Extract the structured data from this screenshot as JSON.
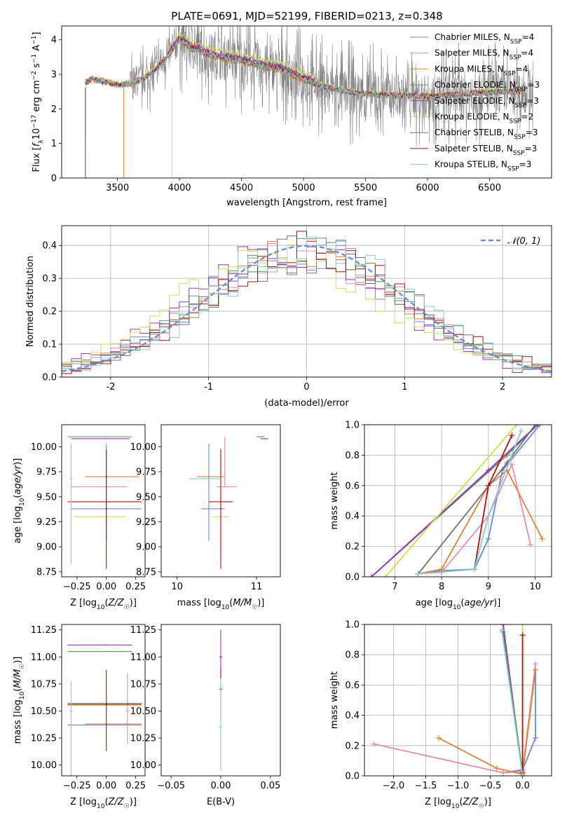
{
  "figure_title": "PLATE=0691, MJD=52199, FIBERID=0213, z=0.348",
  "colors": {
    "c1": "#6688dd",
    "c2": "#e888b8",
    "c3": "#e08030",
    "c4": "#559955",
    "c5": "#9933bb",
    "c6": "#ccdd55",
    "c7": "#707070",
    "c8": "#aa1111",
    "c9": "#88cccc",
    "data": "#808080",
    "gauss": "#6a8fd4"
  },
  "chart_data": [
    {
      "id": "spectrum",
      "type": "line",
      "title": "PLATE=0691, MJD=52199, FIBERID=0213, z=0.348",
      "xlabel": "wavelength [Angstrom, rest frame]",
      "ylabel": "Flux [f_λ 10^-17 erg cm^-2 s^-1 A^-1]",
      "xlim": [
        3050,
        7000
      ],
      "ylim": [
        0,
        4.4
      ],
      "xticks": [
        3500,
        4000,
        4500,
        5000,
        5500,
        6000,
        6500
      ],
      "yticks": [
        0,
        1,
        2,
        3,
        4
      ],
      "legend_position": "top-right",
      "legend": [
        {
          "label": "Chabrier MILES, N",
          "sub": "SSP",
          "suffix": "=4",
          "color": "#6688dd"
        },
        {
          "label": "Salpeter MILES, N",
          "sub": "SSP",
          "suffix": "=4",
          "color": "#e888b8"
        },
        {
          "label": "Kroupa MILES, N",
          "sub": "SSP",
          "suffix": "=4",
          "color": "#e08030"
        },
        {
          "label": "Chabrier ELODIE, N",
          "sub": "SSP",
          "suffix": "=3",
          "color": "#559955"
        },
        {
          "label": "Salpeter ELODIE, N",
          "sub": "SSP",
          "suffix": "=3",
          "color": "#9933bb"
        },
        {
          "label": "Kroupa ELODIE, N",
          "sub": "SSP",
          "suffix": "=2",
          "color": "#ccdd55"
        },
        {
          "label": "Chabrier STELIB, N",
          "sub": "SSP",
          "suffix": "=3",
          "color": "#707070"
        },
        {
          "label": "Salpeter STELIB, N",
          "sub": "SSP",
          "suffix": "=3",
          "color": "#aa1111"
        },
        {
          "label": "Kroupa STELIB, N",
          "sub": "SSP",
          "suffix": "=3",
          "color": "#88cccc"
        }
      ],
      "model_continuum": {
        "x": [
          3240,
          3300,
          3400,
          3500,
          3600,
          3700,
          3800,
          3900,
          4000,
          4100,
          4200,
          4300,
          4400,
          4500,
          4600,
          4700,
          4800,
          4900,
          5000,
          5200,
          5400,
          5600,
          5800,
          6000,
          6200,
          6400,
          6600,
          6800
        ],
        "y": [
          2.75,
          2.85,
          2.78,
          2.68,
          2.72,
          2.85,
          3.1,
          3.5,
          4.0,
          3.75,
          3.6,
          3.5,
          3.45,
          3.38,
          3.3,
          3.2,
          3.15,
          3.0,
          2.85,
          2.6,
          2.45,
          2.4,
          2.38,
          2.35,
          2.4,
          2.45,
          2.5,
          2.52
        ]
      }
    },
    {
      "id": "residuals",
      "type": "step",
      "xlabel": "(data-model)/error",
      "ylabel": "Normed distribution",
      "xlim": [
        -2.5,
        2.5
      ],
      "ylim": [
        0,
        0.46
      ],
      "xticks": [
        -2,
        -1,
        0,
        1,
        2
      ],
      "yticks": [
        0.0,
        0.1,
        0.2,
        0.3,
        0.4
      ],
      "grid": true,
      "legend_position": "top-right",
      "legend": [
        {
          "label": "𝒩(0, 1)",
          "style": "dashed",
          "color": "#6a8fd4"
        }
      ]
    },
    {
      "id": "age_vs_Z",
      "type": "errorbar",
      "xlabel": "Z [log10(Z/Z☉)]",
      "ylabel": "age  [log10(age/yr)]",
      "xlim": [
        -0.38,
        0.33
      ],
      "ylim": [
        8.7,
        10.22
      ],
      "xticks": [
        -0.25,
        0.0,
        0.25
      ],
      "xticklabels": [
        "−0.25",
        "0.00",
        "0.25"
      ],
      "yticks": [
        8.75,
        9.0,
        9.25,
        9.5,
        9.75,
        10.0
      ],
      "points": [
        {
          "color": "#6688dd",
          "x": 0.0,
          "y": 9.38,
          "xerr": [
            0.3,
            0.3
          ],
          "yerr": [
            0.32,
            0.65
          ]
        },
        {
          "color": "#e888b8",
          "x": 0.0,
          "y": 9.6,
          "xerr": [
            0.3,
            0.18
          ],
          "yerr": [
            0.0,
            0.0
          ]
        },
        {
          "color": "#e08030",
          "x": 0.0,
          "y": 9.7,
          "xerr": [
            0.18,
            0.28
          ],
          "yerr": [
            0.0,
            0.0
          ]
        },
        {
          "color": "#559955",
          "x": 0.0,
          "y": 10.1,
          "xerr": [
            0.33,
            0.22
          ],
          "yerr": [
            0.0,
            0.0
          ]
        },
        {
          "color": "#9933bb",
          "x": 0.0,
          "y": 10.08,
          "xerr": [
            0.3,
            0.2
          ],
          "yerr": [
            0.0,
            0.0
          ]
        },
        {
          "color": "#ccdd55",
          "x": 0.0,
          "y": 9.3,
          "xerr": [
            0.28,
            0.17
          ],
          "yerr": [
            0.0,
            0.0
          ]
        },
        {
          "color": "#707070",
          "x": 0.0,
          "y": 9.38,
          "xerr": [
            0.0,
            0.0
          ],
          "yerr": [
            0.0,
            0.0
          ]
        },
        {
          "color": "#aa1111",
          "x": 0.0,
          "y": 9.45,
          "xerr": [
            0.33,
            0.3
          ],
          "yerr": [
            0.67,
            0.52
          ]
        },
        {
          "color": "#88cccc",
          "x": -0.3,
          "y": 9.68,
          "xerr": [
            0.0,
            0.0
          ],
          "yerr": [
            0.85,
            0.35
          ]
        }
      ]
    },
    {
      "id": "age_vs_mass",
      "type": "errorbar",
      "xlabel": "mass [log10(M/M☉)]",
      "xlim": [
        9.8,
        11.3
      ],
      "ylim": [
        8.7,
        10.22
      ],
      "xticks": [
        10,
        11
      ],
      "yticks": [
        8.75,
        9.0,
        9.25,
        9.5,
        9.75,
        10.0
      ],
      "points": [
        {
          "color": "#6688dd",
          "x": 10.4,
          "y": 9.38,
          "xerr": [
            0.1,
            0.2
          ],
          "yerr": [
            0.32,
            0.65
          ]
        },
        {
          "color": "#e888b8",
          "x": 10.6,
          "y": 9.6,
          "xerr": [
            0.1,
            0.15
          ],
          "yerr": [
            0.0,
            0.5
          ]
        },
        {
          "color": "#e08030",
          "x": 10.4,
          "y": 9.7,
          "xerr": [
            0.15,
            0.2
          ],
          "yerr": [
            0.0,
            0.0
          ]
        },
        {
          "color": "#559955",
          "x": 11.05,
          "y": 10.1,
          "xerr": [
            0.05,
            0.05
          ],
          "yerr": [
            0.0,
            0.0
          ]
        },
        {
          "color": "#9933bb",
          "x": 11.1,
          "y": 10.08,
          "xerr": [
            0.05,
            0.05
          ],
          "yerr": [
            0.0,
            0.0
          ]
        },
        {
          "color": "#ccdd55",
          "x": 10.55,
          "y": 9.3,
          "xerr": [
            0.1,
            0.1
          ],
          "yerr": [
            0.0,
            0.0
          ]
        },
        {
          "color": "#707070",
          "x": 10.55,
          "y": 9.38,
          "xerr": [
            0.0,
            0.0
          ],
          "yerr": [
            0.5,
            0.6
          ]
        },
        {
          "color": "#aa1111",
          "x": 10.55,
          "y": 9.45,
          "xerr": [
            0.15,
            0.15
          ],
          "yerr": [
            0.67,
            0.52
          ]
        },
        {
          "color": "#88cccc",
          "x": 10.35,
          "y": 9.68,
          "xerr": [
            0.2,
            0.2
          ],
          "yerr": [
            0.0,
            0.0
          ]
        }
      ]
    },
    {
      "id": "weight_vs_age",
      "type": "line",
      "xlabel": "age  [log10(age/yr)]",
      "ylabel": "mass weight",
      "xlim": [
        6.35,
        10.35
      ],
      "ylim": [
        0,
        1.0
      ],
      "xticks": [
        7,
        8,
        9,
        10
      ],
      "yticks": [
        0.0,
        0.2,
        0.4,
        0.6,
        0.8,
        1.0
      ],
      "grid": true,
      "series": [
        {
          "color": "#6688dd",
          "x": [
            7.5,
            8.0,
            8.7,
            9.0,
            9.3,
            10.1
          ],
          "y": [
            0.02,
            0.04,
            0.05,
            0.25,
            0.7,
            1.0
          ]
        },
        {
          "color": "#e888b8",
          "x": [
            7.5,
            8.0,
            9.0,
            9.5,
            9.9
          ],
          "y": [
            0.02,
            0.03,
            0.4,
            0.74,
            0.21
          ]
        },
        {
          "color": "#e08030",
          "x": [
            7.5,
            8.0,
            9.0,
            9.4,
            10.15
          ],
          "y": [
            0.02,
            0.05,
            0.6,
            0.7,
            0.25
          ]
        },
        {
          "color": "#559955",
          "x": [
            6.5,
            9.4,
            10.05
          ],
          "y": [
            0.0,
            0.8,
            1.0
          ]
        },
        {
          "color": "#9933bb",
          "x": [
            6.5,
            9.0,
            10.05
          ],
          "y": [
            0.0,
            0.7,
            1.0
          ]
        },
        {
          "color": "#ccdd55",
          "x": [
            6.8,
            9.6
          ],
          "y": [
            0.0,
            1.0
          ]
        },
        {
          "color": "#707070",
          "x": [
            7.5,
            9.4,
            10.0
          ],
          "y": [
            0.02,
            0.75,
            1.0
          ]
        },
        {
          "color": "#aa1111",
          "x": [
            7.5,
            8.7,
            9.0,
            9.5
          ],
          "y": [
            0.02,
            0.05,
            0.6,
            0.93
          ]
        },
        {
          "color": "#88cccc",
          "x": [
            7.5,
            8.7,
            9.0,
            9.7
          ],
          "y": [
            0.02,
            0.05,
            0.4,
            0.96
          ]
        }
      ]
    },
    {
      "id": "mass_vs_Z",
      "type": "errorbar",
      "xlabel": "Z [log10(Z/Z☉)]",
      "ylabel": "mass [log10(M/M☉)]",
      "xlim": [
        -0.38,
        0.33
      ],
      "ylim": [
        9.9,
        11.3
      ],
      "xticks": [
        -0.25,
        0.0,
        0.25
      ],
      "xticklabels": [
        "−0.25",
        "0.00",
        "0.25"
      ],
      "yticks": [
        10.0,
        10.25,
        10.5,
        10.75,
        11.0,
        11.25
      ],
      "points": [
        {
          "color": "#6688dd",
          "x": 0.0,
          "y": 10.37,
          "xerr": [
            0.33,
            0.3
          ],
          "yerr": [
            0.0,
            0.0
          ]
        },
        {
          "color": "#e888b8",
          "x": 0.18,
          "y": 10.5,
          "xerr": [
            0.0,
            0.0
          ],
          "yerr": [
            0.3,
            0.35
          ]
        },
        {
          "color": "#e08030",
          "x": 0.0,
          "y": 10.38,
          "xerr": [
            0.18,
            0.3
          ],
          "yerr": [
            0.0,
            0.0
          ]
        },
        {
          "color": "#559955",
          "x": 0.0,
          "y": 11.05,
          "xerr": [
            0.33,
            0.22
          ],
          "yerr": [
            0.0,
            0.0
          ]
        },
        {
          "color": "#9933bb",
          "x": 0.0,
          "y": 11.11,
          "xerr": [
            0.33,
            0.22
          ],
          "yerr": [
            0.0,
            0.0
          ]
        },
        {
          "color": "#ccdd55",
          "x": 0.0,
          "y": 10.55,
          "xerr": [
            0.33,
            0.3
          ],
          "yerr": [
            0.0,
            0.0
          ]
        },
        {
          "color": "#707070",
          "x": 0.0,
          "y": 10.57,
          "xerr": [
            0.33,
            0.3
          ],
          "yerr": [
            0.0,
            0.0
          ]
        },
        {
          "color": "#aa1111",
          "x": 0.0,
          "y": 10.56,
          "xerr": [
            0.33,
            0.3
          ],
          "yerr": [
            0.43,
            0.32
          ]
        },
        {
          "color": "#88cccc",
          "x": -0.3,
          "y": 10.5,
          "xerr": [
            0.0,
            0.0
          ],
          "yerr": [
            0.6,
            0.28
          ]
        }
      ]
    },
    {
      "id": "mass_vs_ebv",
      "type": "errorbar",
      "xlabel": "E(B-V)",
      "xlim": [
        -0.06,
        0.06
      ],
      "ylim": [
        9.9,
        11.3
      ],
      "xticks": [
        -0.05,
        0.0,
        0.05
      ],
      "xticklabels": [
        "−0.05",
        "0.00",
        "0.05"
      ],
      "yticks": [
        10.0,
        10.25,
        10.5,
        10.75,
        11.0,
        11.25
      ],
      "points": [
        {
          "color": "#9933bb",
          "x": 0.0,
          "y": 11.0,
          "xerr": [
            0.0,
            0.0
          ],
          "yerr": [
            0.15,
            0.25
          ]
        },
        {
          "color": "#aa1111",
          "x": 0.0,
          "y": 10.7,
          "xerr": [
            0.0,
            0.0
          ],
          "yerr": [
            0.3,
            0.2
          ]
        },
        {
          "color": "#88cccc",
          "x": 0.0,
          "y": 10.35,
          "xerr": [
            0.0,
            0.0
          ],
          "yerr": [
            0.4,
            0.45
          ]
        }
      ]
    },
    {
      "id": "weight_vs_Z",
      "type": "line",
      "xlabel": "Z [log10(Z/Z☉)]",
      "ylabel": "mass weight",
      "xlim": [
        -2.45,
        0.45
      ],
      "ylim": [
        0,
        1.0
      ],
      "xticks": [
        -2.0,
        -1.5,
        -1.0,
        -0.5,
        0.0
      ],
      "xticklabels": [
        "−2.0",
        "−1.5",
        "−1.0",
        "−0.5",
        "0.0"
      ],
      "yticks": [
        0.0,
        0.2,
        0.4,
        0.6,
        0.8,
        1.0
      ],
      "grid": true,
      "series": [
        {
          "color": "#6688dd",
          "x": [
            -0.3,
            0.0,
            0.2,
            0.2
          ],
          "y": [
            0.02,
            0.04,
            0.25,
            0.7
          ]
        },
        {
          "color": "#e888b8",
          "x": [
            -2.3,
            -0.3,
            0.0,
            0.2
          ],
          "y": [
            0.21,
            0.02,
            0.03,
            0.74
          ]
        },
        {
          "color": "#e08030",
          "x": [
            -1.3,
            -0.4,
            0.0,
            0.2
          ],
          "y": [
            0.25,
            0.05,
            0.01,
            0.7
          ]
        },
        {
          "color": "#559955",
          "x": [
            -0.3,
            0.0
          ],
          "y": [
            1.0,
            0.0
          ]
        },
        {
          "color": "#9933bb",
          "x": [
            -0.3,
            0.0
          ],
          "y": [
            1.0,
            0.0
          ]
        },
        {
          "color": "#ccdd55",
          "x": [
            0.0,
            0.0
          ],
          "y": [
            0.0,
            1.0
          ]
        },
        {
          "color": "#707070",
          "x": [
            -0.3,
            0.0
          ],
          "y": [
            0.95,
            0.02
          ]
        },
        {
          "color": "#aa1111",
          "x": [
            0.0,
            0.0
          ],
          "y": [
            0.02,
            0.93
          ]
        },
        {
          "color": "#88cccc",
          "x": [
            -0.32,
            0.0
          ],
          "y": [
            0.96,
            0.0
          ]
        }
      ]
    }
  ]
}
